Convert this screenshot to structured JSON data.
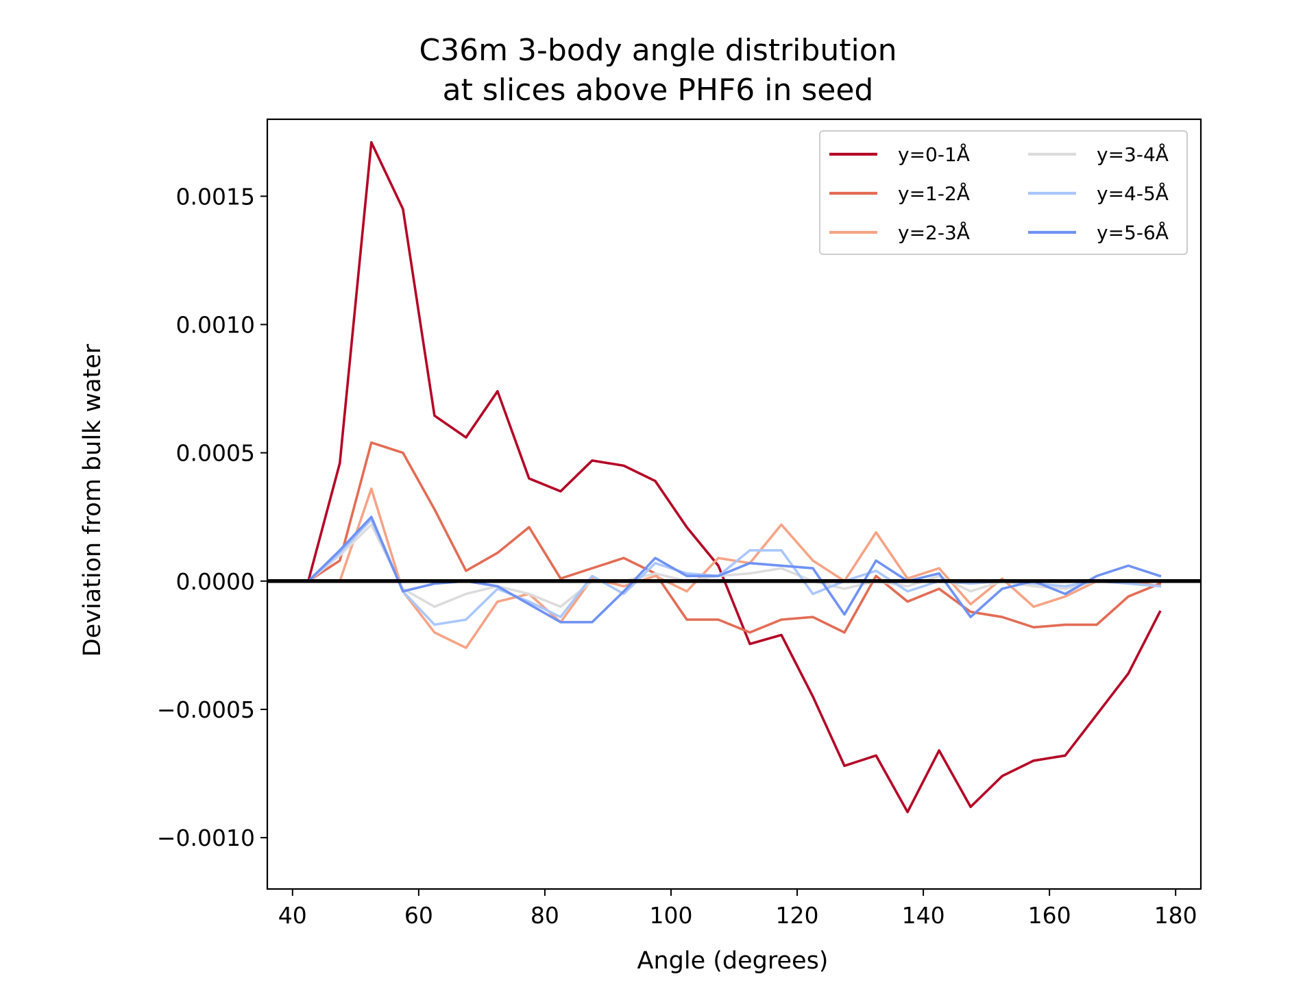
{
  "chart_data": {
    "type": "line",
    "title": [
      "C36m 3-body angle distribution",
      "at slices above PHF6 in seed"
    ],
    "xlabel": "Angle (degrees)",
    "ylabel": "Deviation from bulk water",
    "xlim": [
      36,
      184
    ],
    "ylim": [
      -0.0012,
      0.0018
    ],
    "xticks": [
      40,
      60,
      80,
      100,
      120,
      140,
      160,
      180
    ],
    "xtick_labels": [
      "40",
      "60",
      "80",
      "100",
      "120",
      "140",
      "160",
      "180"
    ],
    "yticks": [
      -0.001,
      -0.0005,
      0.0,
      0.0005,
      0.001,
      0.0015
    ],
    "ytick_labels": [
      "−0.0010",
      "−0.0005",
      "0.0000",
      "0.0005",
      "0.0010",
      "0.0015"
    ],
    "hline": 0,
    "grid": false,
    "legend": {
      "position": "upper right",
      "columns": 2
    },
    "x": [
      42.5,
      47.5,
      52.5,
      57.5,
      62.5,
      67.5,
      72.5,
      77.5,
      82.5,
      87.5,
      92.5,
      97.5,
      102.5,
      107.5,
      112.5,
      117.5,
      122.5,
      127.5,
      132.5,
      137.5,
      142.5,
      147.5,
      152.5,
      157.5,
      162.5,
      167.5,
      172.5,
      177.5
    ],
    "series": [
      {
        "name": "y=0-1Å",
        "color": "#b40426",
        "values": [
          0.0,
          0.00046,
          0.00171,
          0.00145,
          0.000645,
          0.00056,
          0.00074,
          0.0004,
          0.00035,
          0.00047,
          0.00045,
          0.00039,
          0.00021,
          6e-05,
          -0.000245,
          -0.00021,
          -0.00045,
          -0.00072,
          -0.00068,
          -0.0009,
          -0.00066,
          -0.00088,
          -0.00076,
          -0.0007,
          -0.00068,
          -0.00052,
          -0.00036,
          -0.00012
        ]
      },
      {
        "name": "y=1-2Å",
        "color": "#e36c55",
        "values": [
          0.0,
          8e-05,
          0.00054,
          0.0005,
          0.00028,
          4e-05,
          0.00011,
          0.00021,
          1e-05,
          5e-05,
          9e-05,
          3e-05,
          -0.00015,
          -0.00015,
          -0.0002,
          -0.00015,
          -0.00014,
          -0.0002,
          2e-05,
          -8e-05,
          -3e-05,
          -0.00012,
          -0.00014,
          -0.00018,
          -0.00017,
          -0.00017,
          -6e-05,
          -1e-05
        ]
      },
      {
        "name": "y=2-3Å",
        "color": "#f6a385",
        "values": [
          0.0,
          0.0,
          0.00036,
          -4e-05,
          -0.0002,
          -0.00026,
          -8e-05,
          -5e-05,
          -0.00016,
          1e-05,
          -2e-05,
          2e-05,
          -4e-05,
          9e-05,
          7e-05,
          0.00022,
          8e-05,
          0.0,
          0.00019,
          1e-05,
          5e-05,
          -9e-05,
          1e-05,
          -0.0001,
          -6e-05,
          0.0,
          0.0,
          -2e-05
        ]
      },
      {
        "name": "y=3-4Å",
        "color": "#dddcdc",
        "values": [
          0.0,
          0.0001,
          0.00022,
          -3e-05,
          -0.0001,
          -5e-05,
          -2e-05,
          -5e-05,
          -0.0001,
          0.0,
          0.0,
          3e-05,
          0.0,
          2e-05,
          3e-05,
          5e-05,
          0.0,
          -3e-05,
          0.0,
          -2e-05,
          2e-05,
          -4e-05,
          0.0,
          -2e-05,
          -3e-05,
          0.0,
          0.0,
          0.0
        ]
      },
      {
        "name": "y=4-5Å",
        "color": "#aac7fd",
        "values": [
          0.0,
          0.00011,
          0.00024,
          -4e-05,
          -0.00017,
          -0.00015,
          -3e-05,
          -8e-05,
          -0.00014,
          2e-05,
          -5e-05,
          7e-05,
          3e-05,
          2e-05,
          0.00012,
          0.00012,
          -5e-05,
          0.0,
          4e-05,
          -4e-05,
          0.0,
          -1e-05,
          0.0,
          -1e-05,
          -2e-05,
          0.0,
          -1e-05,
          -2e-05
        ]
      },
      {
        "name": "y=5-6Å",
        "color": "#6f92f3",
        "values": [
          0.0,
          0.00012,
          0.00025,
          -4e-05,
          -1e-05,
          0.0,
          -2e-05,
          -9e-05,
          -0.00016,
          -0.00016,
          -4e-05,
          9e-05,
          2e-05,
          2e-05,
          7e-05,
          6e-05,
          5e-05,
          -0.00013,
          8e-05,
          0.0,
          3e-05,
          -0.00014,
          -3e-05,
          0.0,
          -5e-05,
          2e-05,
          6e-05,
          2e-05
        ]
      }
    ]
  }
}
